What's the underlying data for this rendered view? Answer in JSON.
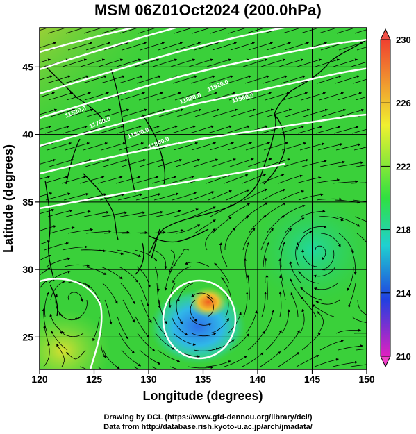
{
  "title": "MSM 06Z01Oct2024 (200.0hPa)",
  "map": {
    "xlabel": "Longitude (degrees)",
    "ylabel": "Latitude  (degrees)",
    "lon_range": [
      120,
      150
    ],
    "lat_range": [
      22.6,
      47.9
    ],
    "lon_ticks": [
      "120",
      "125",
      "130",
      "135",
      "140",
      "145",
      "150"
    ],
    "lat_ticks": [
      "25",
      "30",
      "35",
      "40",
      "45"
    ],
    "contour_labels": [
      "11520.0",
      "11760.0",
      "11800.0",
      "11840.0",
      "11880.0",
      "11920.0",
      "11960.0"
    ]
  },
  "colorbar": {
    "min": 210,
    "max": 230,
    "tick_labels": [
      "230",
      "226",
      "222",
      "218",
      "214",
      "210"
    ]
  },
  "credits": {
    "drawing": "Drawing by DCL (https://www.gfd-dennou.org/library/dcl/)",
    "data": "Data from http://database.rish.kyoto-u.ac.jp/arch/jmadata/"
  },
  "colors": {
    "hot": "#e8502a",
    "warm": "#f0c830",
    "mid": "#30d040",
    "cool": "#20c8c8",
    "cold": "#2848e0",
    "coldest": "#e020c0"
  }
}
